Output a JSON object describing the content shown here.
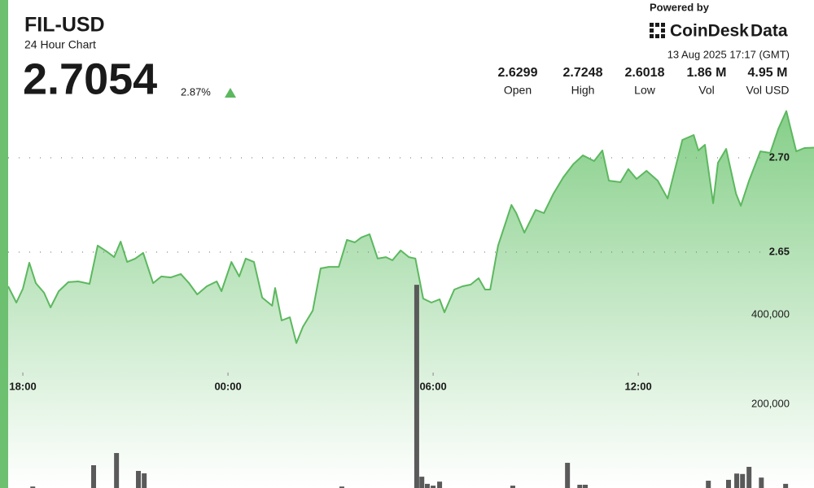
{
  "header": {
    "title": "FIL-USD",
    "subtitle": "24 Hour Chart",
    "price": "2.7054",
    "change": "2.87%"
  },
  "branding": {
    "powered_by": "Powered by",
    "logo": "CoinDesk",
    "logo_suffix": "Data",
    "timestamp": "13 Aug 2025 17:17 (GMT)"
  },
  "stats": [
    {
      "value": "2.6299",
      "label": "Open"
    },
    {
      "value": "2.7248",
      "label": "High"
    },
    {
      "value": "2.6018",
      "label": "Low"
    },
    {
      "value": "1.86 M",
      "label": "Vol"
    },
    {
      "value": "4.95 M",
      "label": "Vol USD"
    }
  ],
  "chart_data": {
    "type": "line",
    "xlim": [
      17.57,
      41.14
    ],
    "xticks": [
      {
        "value": 18,
        "label": "18:00"
      },
      {
        "value": 24,
        "label": "00:00"
      },
      {
        "value": 30,
        "label": "06:00"
      },
      {
        "value": 36,
        "label": "12:00"
      }
    ],
    "ylim": [
      2.525,
      2.7276
    ],
    "yticks": [
      {
        "value": 2.65,
        "label": "2.65"
      },
      {
        "value": 2.7,
        "label": "2.70"
      }
    ],
    "y2lim": [
      12700,
      867300
    ],
    "y2ticks": [
      {
        "value": 200000,
        "label": "200,000"
      },
      {
        "value": 400000,
        "label": "400,000"
      }
    ],
    "grid": true,
    "series": [
      {
        "color": "#5cb85f",
        "x": [
          17.57,
          17.81,
          18.0,
          18.19,
          18.38,
          18.62,
          18.81,
          19.05,
          19.33,
          19.62,
          19.95,
          20.19,
          20.48,
          20.67,
          20.86,
          21.05,
          21.29,
          21.52,
          21.81,
          22.05,
          22.33,
          22.62,
          22.86,
          23.1,
          23.38,
          23.67,
          23.81,
          24.1,
          24.33,
          24.52,
          24.76,
          25.0,
          25.29,
          25.38,
          25.57,
          25.81,
          26.0,
          26.19,
          26.48,
          26.71,
          26.95,
          27.24,
          27.48,
          27.71,
          27.9,
          28.14,
          28.38,
          28.62,
          28.81,
          29.05,
          29.29,
          29.48,
          29.71,
          29.95,
          30.19,
          30.33,
          30.62,
          30.86,
          31.1,
          31.33,
          31.52,
          31.67,
          31.9,
          32.29,
          32.43,
          32.67,
          33.0,
          33.24,
          33.52,
          33.81,
          34.1,
          34.38,
          34.71,
          34.95,
          35.14,
          35.48,
          35.71,
          35.95,
          36.24,
          36.57,
          36.86,
          37.29,
          37.62,
          37.76,
          37.95,
          38.19,
          38.33,
          38.57,
          38.86,
          39.0,
          39.24,
          39.57,
          39.86,
          40.1,
          40.33,
          40.62,
          40.86,
          41.14
        ],
        "values": [
          2.6319,
          2.6233,
          2.6306,
          2.6444,
          2.6336,
          2.6285,
          2.6207,
          2.6293,
          2.6341,
          2.6345,
          2.6332,
          2.6535,
          2.65,
          2.6474,
          2.6556,
          2.6448,
          2.6466,
          2.6496,
          2.6336,
          2.6371,
          2.6366,
          2.6384,
          2.6336,
          2.6276,
          2.6319,
          2.6345,
          2.6293,
          2.6448,
          2.6371,
          2.6466,
          2.6448,
          2.6259,
          2.6216,
          2.631,
          2.6138,
          2.6155,
          2.6018,
          2.6104,
          2.619,
          2.6414,
          2.6422,
          2.6422,
          2.6565,
          2.6552,
          2.6578,
          2.6595,
          2.6466,
          2.6474,
          2.6457,
          2.6509,
          2.6474,
          2.6466,
          2.6254,
          2.6233,
          2.625,
          2.6181,
          2.6302,
          2.6319,
          2.6328,
          2.6362,
          2.6302,
          2.6302,
          2.6535,
          2.675,
          2.6707,
          2.6603,
          2.6724,
          2.6707,
          2.681,
          2.6897,
          2.6966,
          2.7013,
          2.6983,
          2.7039,
          2.6879,
          2.6871,
          2.694,
          2.6888,
          2.6931,
          2.6879,
          2.6784,
          2.7095,
          2.7121,
          2.7039,
          2.7069,
          2.6759,
          2.6974,
          2.7047,
          2.681,
          2.6746,
          2.6879,
          2.7034,
          2.7026,
          2.7155,
          2.7248,
          2.7034,
          2.7052,
          2.7054
        ]
      },
      {
        "type": "bar",
        "axis": "y2",
        "color": "#5a5a5a",
        "x": [
          18.29,
          20.07,
          20.74,
          21.38,
          21.55,
          27.33,
          29.52,
          29.67,
          29.83,
          30.0,
          30.19,
          32.33,
          33.93,
          34.29,
          34.45,
          38.05,
          38.64,
          38.88,
          39.05,
          39.24,
          39.6,
          40.31
        ],
        "values": [
          16000,
          63600,
          90900,
          50900,
          45500,
          16000,
          467000,
          38000,
          22000,
          18000,
          27000,
          18000,
          69000,
          20000,
          20000,
          29000,
          31000,
          45000,
          44000,
          60000,
          36000,
          22000
        ]
      }
    ]
  }
}
